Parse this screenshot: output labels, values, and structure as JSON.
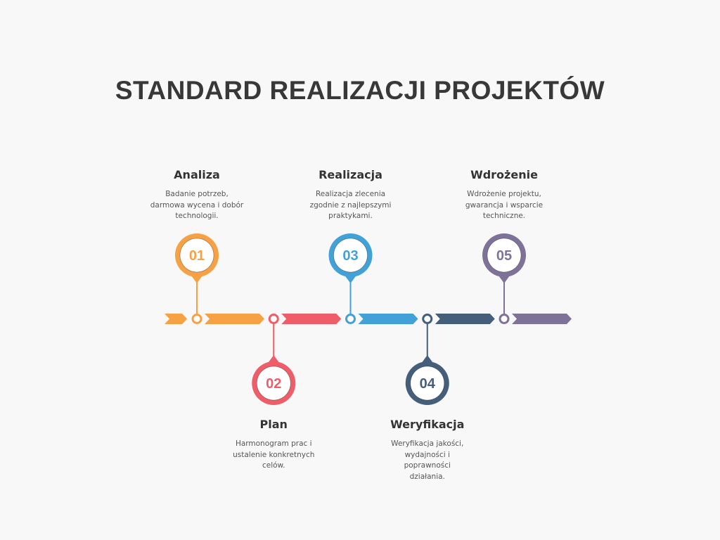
{
  "title": "STANDARD REALIZACJI PROJEKTÓW",
  "steps": [
    {
      "number": "01",
      "title": "Analiza",
      "description_lines": [
        "Badanie potrzeb,",
        "darmowa wycena i dobór",
        "technologii."
      ],
      "color": "#F7A145",
      "position": "top"
    },
    {
      "number": "02",
      "title": "Plan",
      "description_lines": [
        "Harmonogram prac i",
        "ustalenie konkretnych",
        "celów."
      ],
      "color": "#EE5D68",
      "position": "bottom"
    },
    {
      "number": "03",
      "title": "Realizacja",
      "description_lines": [
        "Realizacja zlecenia",
        "zgodnie z najlepszymi",
        "praktykami."
      ],
      "color": "#42A1D7",
      "position": "top"
    },
    {
      "number": "04",
      "title": "Weryfikacja",
      "description_lines": [
        "Weryfikacja jakości,",
        "wydajności i",
        "poprawności",
        "działania."
      ],
      "color": "#455E7A",
      "position": "bottom"
    },
    {
      "number": "05",
      "title": "Wdrożenie",
      "description_lines": [
        "Wdrożenie projektu,",
        "gwarancja i wsparcie",
        "techniczne."
      ],
      "color": "#7E7299",
      "position": "top"
    }
  ]
}
